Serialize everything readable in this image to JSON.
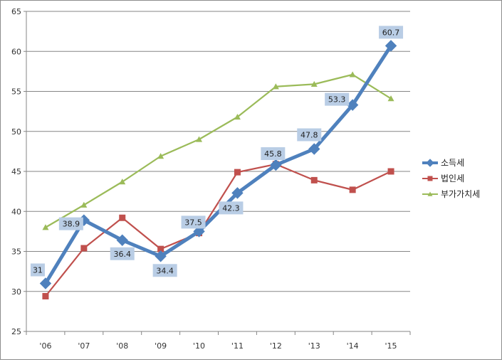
{
  "chart_data": {
    "type": "line",
    "title": "",
    "xlabel": "",
    "ylabel": "",
    "categories": [
      "'06",
      "'07",
      "'08",
      "'09",
      "'10",
      "'11",
      "'12",
      "'13",
      "'14",
      "'15"
    ],
    "ylim": [
      25,
      65
    ],
    "yticks": [
      25,
      30,
      35,
      40,
      45,
      50,
      55,
      60,
      65
    ],
    "grid": "horizontal",
    "legend_position": "right",
    "series": [
      {
        "name": "소득세",
        "color": "#4f81bd",
        "marker": "diamond",
        "values": [
          31,
          38.9,
          36.4,
          34.4,
          37.5,
          42.3,
          45.8,
          47.8,
          53.3,
          60.7
        ],
        "labels": [
          "31",
          "38.9",
          "36.4",
          "34.4",
          "37.5",
          "42.3",
          "45.8",
          "47.8",
          "53.3",
          "60.7"
        ]
      },
      {
        "name": "법인세",
        "color": "#c0504d",
        "marker": "square",
        "values": [
          29.4,
          35.4,
          39.2,
          35.3,
          37.3,
          44.9,
          45.9,
          43.9,
          42.7,
          45.0
        ]
      },
      {
        "name": "부가가치세",
        "color": "#9bbb59",
        "marker": "triangle",
        "values": [
          38.0,
          40.8,
          43.7,
          46.9,
          49.0,
          51.8,
          55.6,
          55.9,
          57.1,
          54.1
        ]
      }
    ]
  }
}
